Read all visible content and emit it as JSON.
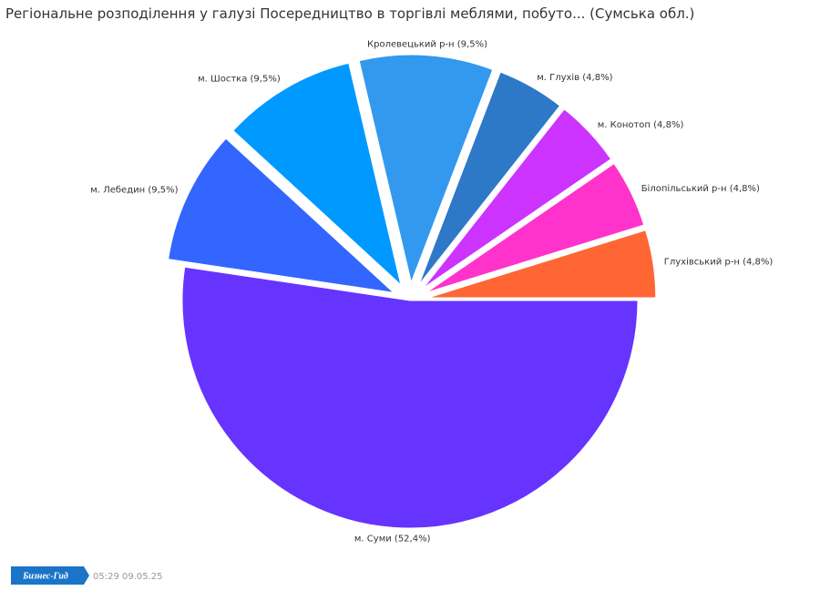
{
  "chart_data": {
    "type": "pie",
    "title": "Регіональне розподілення у галузі Посередництво в торгівлі меблями, побуто... (Сумська обл.)",
    "labels": [
      "м. Суми (52,4%)",
      "м. Лебедин (9,5%)",
      "м. Шостка (9,5%)",
      "Кролевецький р-н (9,5%)",
      "м. Глухів (4,8%)",
      "м. Конотоп (4,8%)",
      "Білопільський р-н (4,8%)",
      "Глухівський р-н (4,8%)"
    ],
    "values": [
      52.4,
      9.5,
      9.5,
      9.5,
      4.8,
      4.8,
      4.8,
      4.8
    ],
    "colors": [
      "#6633ff",
      "#3366ff",
      "#0099ff",
      "#3399ee",
      "#2e78c8",
      "#cc33ff",
      "#ff33cc",
      "#ff6633"
    ],
    "exploded": [
      false,
      true,
      true,
      true,
      true,
      true,
      true,
      true
    ]
  },
  "footer": {
    "logo": "Бизнес-Гид",
    "timestamp": "05:29 09.05.25"
  }
}
